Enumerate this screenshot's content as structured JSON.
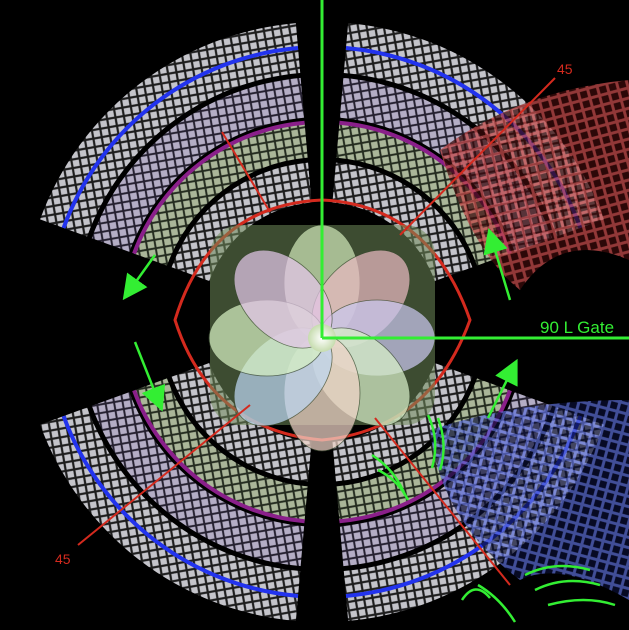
{
  "labels": {
    "angle_top_right": "45",
    "angle_bottom_left": "45",
    "gate": "90 L Gate"
  },
  "colors": {
    "background": "#000000",
    "guide_green": "#33ee33",
    "guide_red": "#d42a1e",
    "ring_blue": "#2233ee",
    "ring_purple": "#8a1f8a",
    "ring_pale_green": "#b8c9a0",
    "ring_lilac": "#cfc6e6"
  },
  "icons": [
    "arrow-icon",
    "curved-arrow-icon",
    "center-flower-icon"
  ]
}
